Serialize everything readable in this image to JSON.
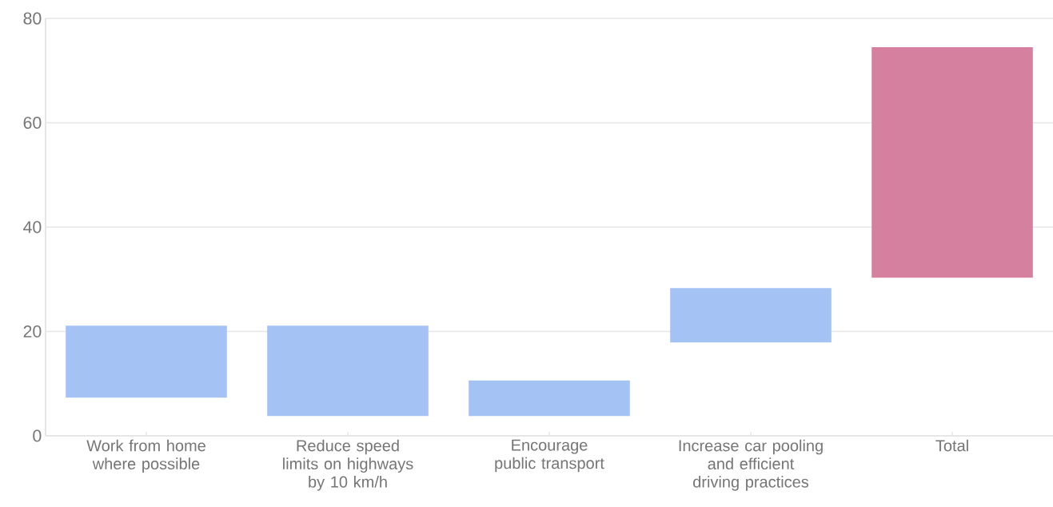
{
  "chart_data": {
    "type": "bar",
    "categories": [
      "Work from home where possible",
      "Reduce speed limits on highways by 10 km/h",
      "Encourage public transport",
      "Increase car pooling and efficient driving practices",
      "Total"
    ],
    "base": [
      7.3,
      3.8,
      3.8,
      17.9,
      30.3
    ],
    "values": [
      13.8,
      17.3,
      6.8,
      10.4,
      44.2
    ],
    "colors": [
      "#a4c2f4",
      "#a4c2f4",
      "#a4c2f4",
      "#a4c2f4",
      "#d5809f"
    ],
    "ylim": [
      0,
      80
    ],
    "yticks": [
      0,
      20,
      40,
      60,
      80
    ],
    "grid": "y"
  }
}
